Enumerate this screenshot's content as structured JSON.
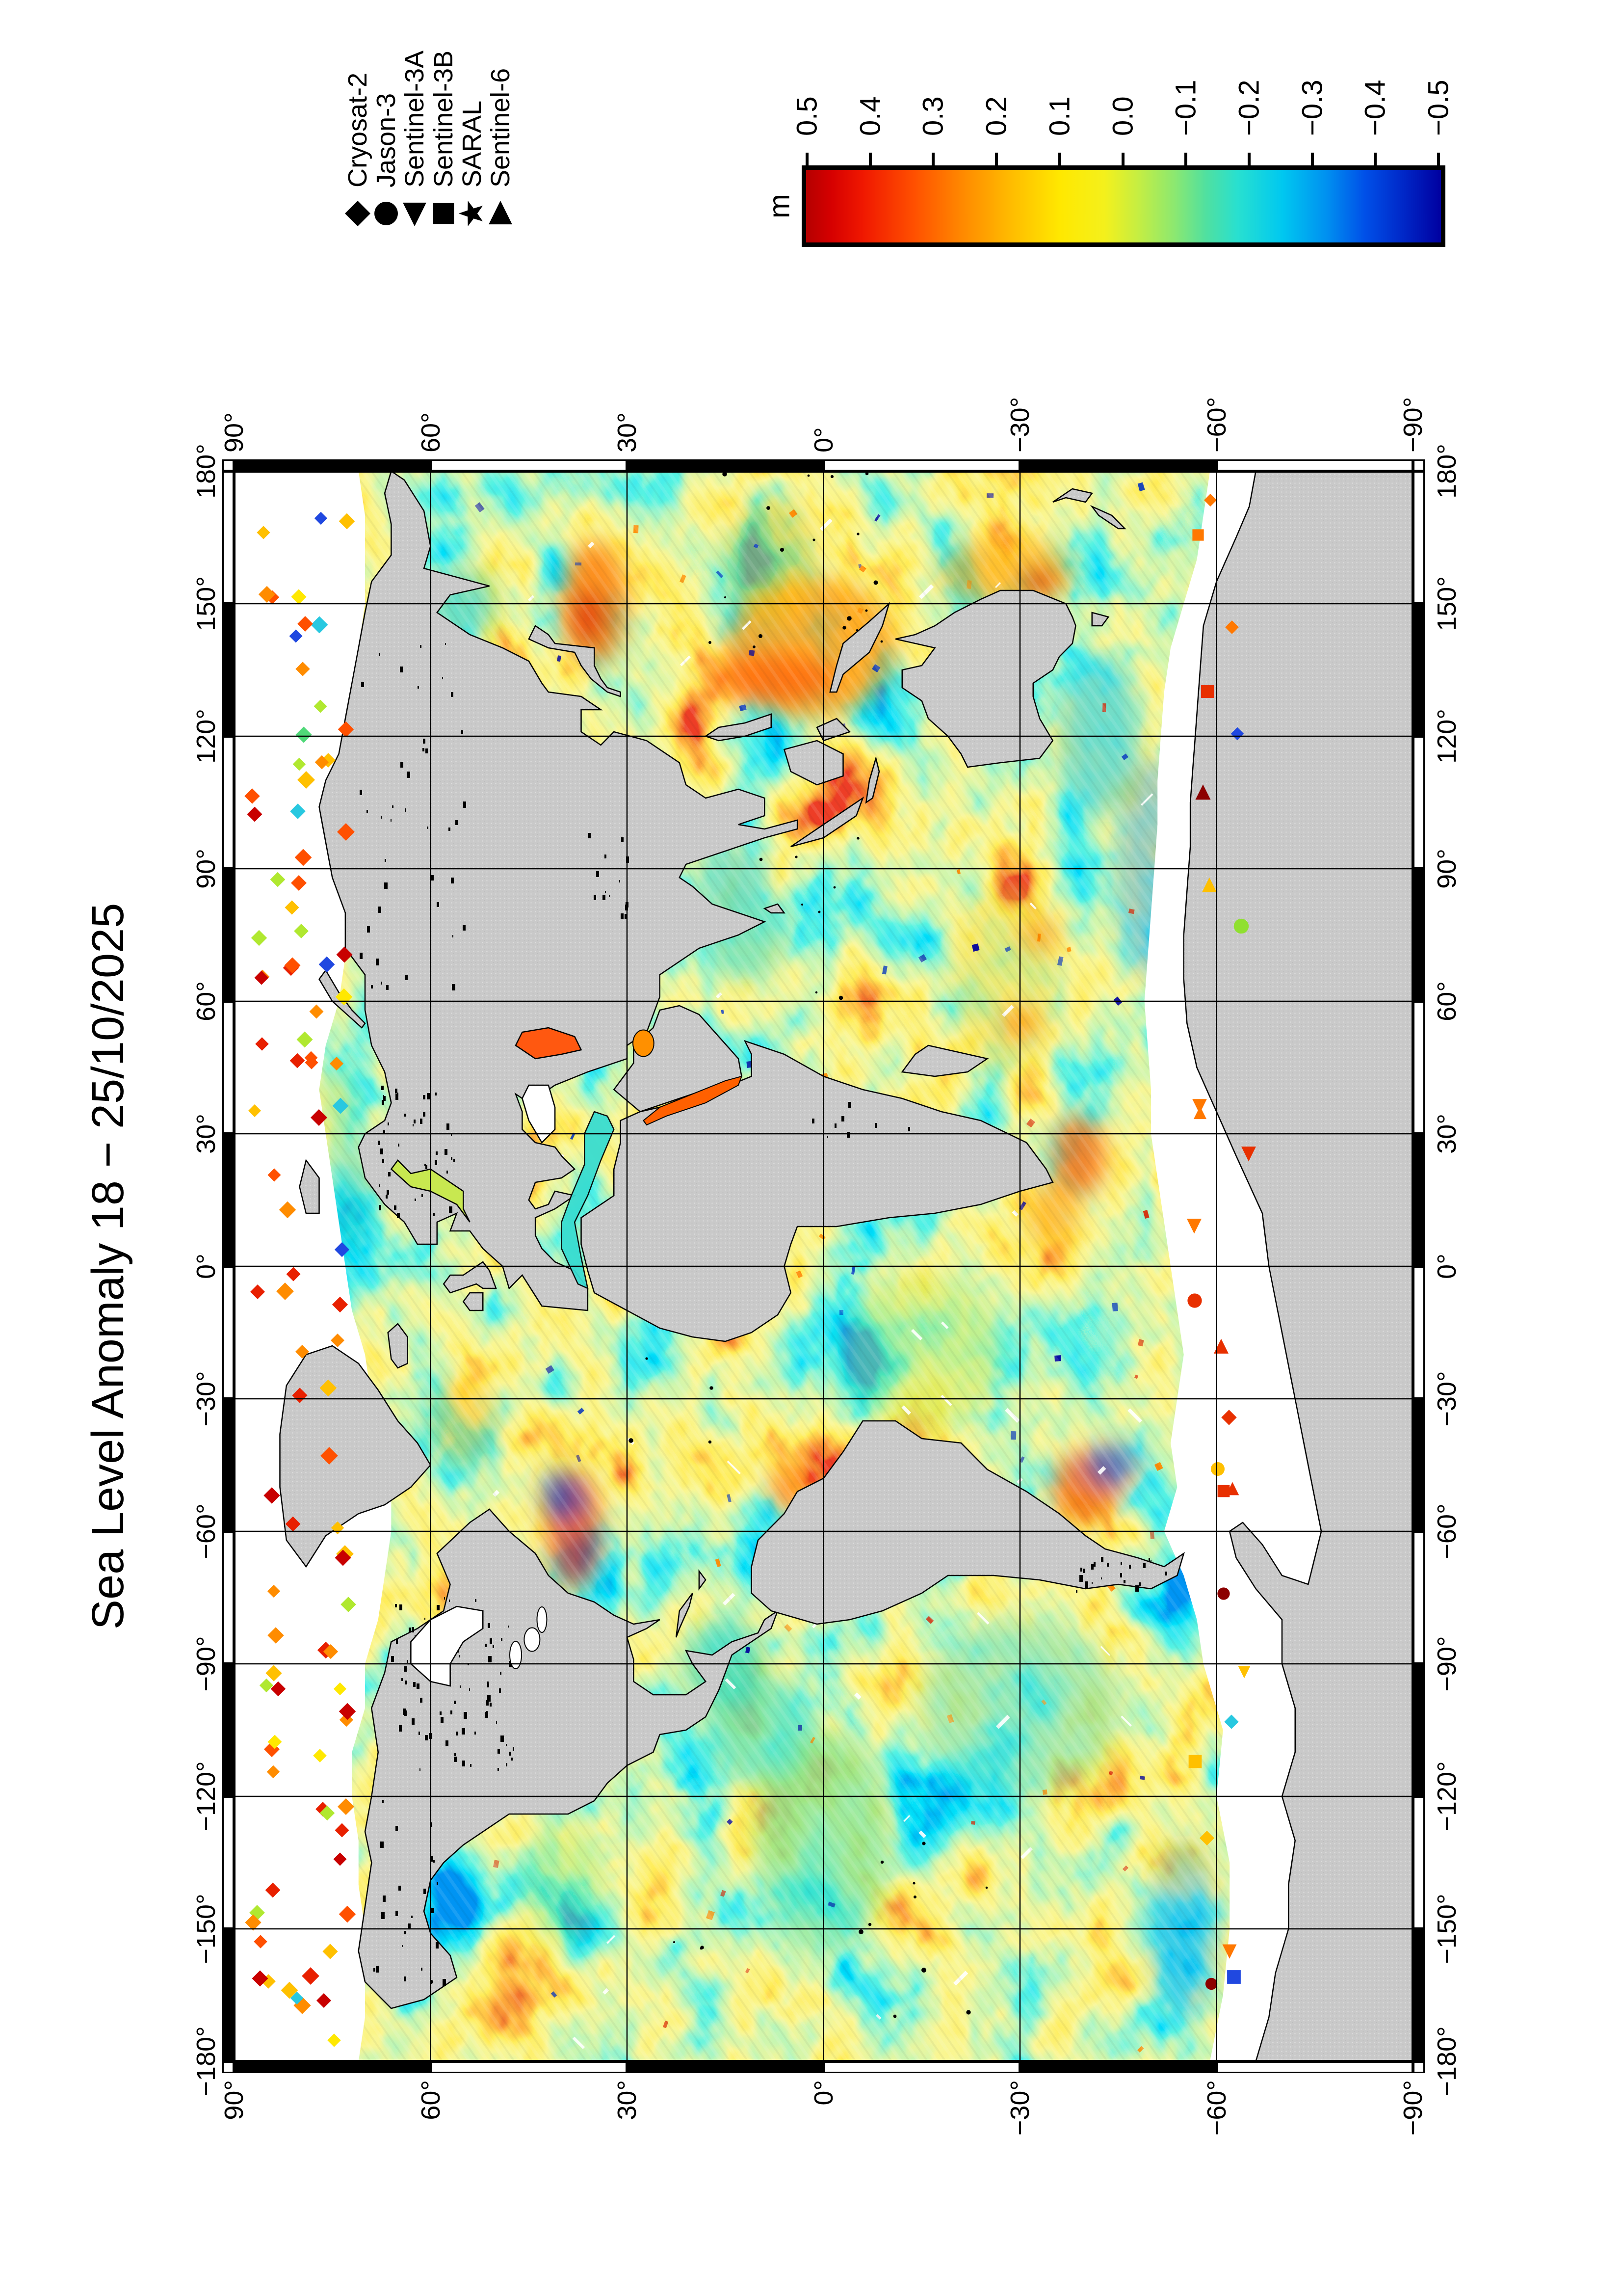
{
  "title": "Sea Level Anomaly 18 − 25/10/2025",
  "legend": {
    "entries": [
      {
        "label": "Cryosat-2",
        "symbol": "diamond"
      },
      {
        "label": "Jason-3",
        "symbol": "circle"
      },
      {
        "label": "Sentinel-3A",
        "symbol": "triangle-left"
      },
      {
        "label": "Sentinel-3B",
        "symbol": "square"
      },
      {
        "label": "SARAL",
        "symbol": "star"
      },
      {
        "label": "Sentinel-6",
        "symbol": "triangle-right"
      }
    ]
  },
  "colorbar": {
    "unit": "m",
    "tick_labels": [
      "0.5",
      "0.4",
      "0.3",
      "0.2",
      "0.1",
      "0.0",
      "−0.1",
      "−0.2",
      "−0.3",
      "−0.4",
      "−0.5"
    ],
    "gradient_stops": [
      [
        "#b40000",
        0
      ],
      [
        "#d60000",
        4
      ],
      [
        "#f01800",
        9
      ],
      [
        "#ff5000",
        17
      ],
      [
        "#ff8c00",
        25
      ],
      [
        "#ffc000",
        33
      ],
      [
        "#ffe800",
        40
      ],
      [
        "#f4f01c",
        47
      ],
      [
        "#c8ee40",
        52
      ],
      [
        "#8ce870",
        58
      ],
      [
        "#50e0a0",
        63
      ],
      [
        "#28e0d0",
        68
      ],
      [
        "#00c8f0",
        75
      ],
      [
        "#0090f0",
        82
      ],
      [
        "#0050e8",
        88
      ],
      [
        "#0028c8",
        94
      ],
      [
        "#0000a0",
        100
      ]
    ]
  },
  "axes": {
    "lon_labels": [
      "180°",
      "150°",
      "120°",
      "90°",
      "60°",
      "30°",
      "0°",
      "−30°",
      "−60°",
      "−90°",
      "−120°",
      "−150°",
      "−180°"
    ],
    "lat_labels": [
      "90°",
      "60°",
      "30°",
      "0°",
      "−30°",
      "−60°",
      "−90°"
    ],
    "grid_interval_deg": 30
  },
  "map": {
    "land_color": "#c9c9c9",
    "coastline_color": "#000000",
    "no_data_color": "#ffffff",
    "grid_color": "#000000",
    "inland_seas": {
      "caspian": "#ff5810",
      "red_sea": "#ff6000",
      "persian_gulf": "#ff9000",
      "black_sea": "#ffffff",
      "mediterranean": "#38dcd0",
      "baltic": "#c8e850"
    },
    "ice_marker_palette_north": [
      [
        "#c80000",
        3
      ],
      [
        "#e82000",
        4
      ],
      [
        "#ff5000",
        5
      ],
      [
        "#ff8c00",
        5
      ],
      [
        "#ffc000",
        4
      ],
      [
        "#ffe800",
        3
      ],
      [
        "#b0e830",
        2
      ],
      [
        "#50d878",
        1
      ],
      [
        "#28c8e0",
        1
      ],
      [
        "#2048e0",
        1
      ]
    ],
    "ice_marker_palette_south": [
      [
        "#e83000",
        3
      ],
      [
        "#ff7800",
        3
      ],
      [
        "#ffc000",
        2
      ],
      [
        "#8c0000",
        2
      ],
      [
        "#2048e0",
        2
      ],
      [
        "#28c8e0",
        1
      ],
      [
        "#90e030",
        1
      ]
    ],
    "speckle_colors": [
      "#d82000",
      "#0030c0",
      "#ff8800",
      "#0000a0"
    ]
  },
  "chart_data": {
    "type": "heatmap",
    "title": "Sea Level Anomaly 18 − 25/10/2025",
    "variable": "sea level anomaly",
    "unit": "m",
    "value_range": [
      -0.5,
      0.5
    ],
    "colorbar_ticks": [
      0.5,
      0.4,
      0.3,
      0.2,
      0.1,
      0.0,
      -0.1,
      -0.2,
      -0.3,
      -0.4,
      -0.5
    ],
    "lon_range": [
      -180,
      180
    ],
    "lat_range": [
      -90,
      90
    ],
    "grid_interval_deg": 30,
    "satellites": [
      "Cryosat-2",
      "Jason-3",
      "Sentinel-3A",
      "Sentinel-3B",
      "SARAL",
      "Sentinel-6"
    ],
    "legend_position": "right margin, top",
    "colorbar_position": "right margin, vertical, +0.5 (red) top to −0.5 (blue) bottom",
    "orientation": "landscape figure rotated 90° CCW on portrait page"
  }
}
